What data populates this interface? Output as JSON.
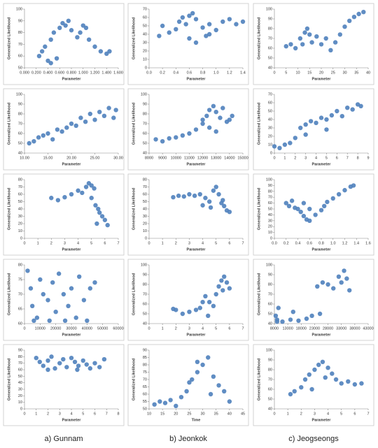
{
  "captions": [
    "a) Gunnam",
    "b) Jeonkok",
    "c) Jeogseongs"
  ],
  "chart_data": [
    {
      "type": "scatter",
      "color": "#4f81bd",
      "y_label": "Generalized Likelihood",
      "x_label": "Parameter",
      "xlim": [
        0,
        1.6
      ],
      "xticks": [
        {
          "value": 0,
          "label": "0.000"
        },
        {
          "value": 0.2,
          "label": "0.200"
        },
        {
          "value": 0.4,
          "label": "0.400"
        },
        {
          "value": 0.6,
          "label": "0.600"
        },
        {
          "value": 0.8,
          "label": "0.800"
        },
        {
          "value": 1,
          "label": "1.000"
        },
        {
          "value": 1.2,
          "label": "1.200"
        },
        {
          "value": 1.4,
          "label": "1.400"
        },
        {
          "value": 1.6,
          "label": "1.600"
        }
      ],
      "ylim": [
        50,
        100
      ],
      "yticks": [
        50,
        60,
        70,
        80,
        90,
        100
      ],
      "x": [
        0.25,
        0.3,
        0.35,
        0.45,
        0.5,
        0.6,
        0.65,
        0.7,
        0.75,
        0.8,
        0.9,
        0.95,
        1.0,
        1.05,
        1.1,
        1.2,
        1.3,
        1.4,
        1.45,
        0.4,
        0.45,
        0.55
      ],
      "y": [
        60,
        64,
        68,
        74,
        80,
        84,
        88,
        86,
        90,
        82,
        76,
        80,
        86,
        84,
        74,
        68,
        64,
        62,
        64,
        56,
        54,
        58
      ]
    },
    {
      "type": "scatter",
      "color": "#4f81bd",
      "y_label": "Generalized Likelihood",
      "x_label": "Parameter",
      "xlim": [
        0,
        1.4
      ],
      "xticks": [
        {
          "value": 0,
          "label": "0.0"
        },
        0.2,
        0.4,
        0.6,
        0.8,
        {
          "value": 1,
          "label": "1.0"
        },
        1.2,
        1.4
      ],
      "ylim": [
        0,
        70
      ],
      "yticks": [
        0,
        10,
        20,
        30,
        40,
        50,
        60,
        70
      ],
      "x": [
        0.15,
        0.2,
        0.3,
        0.4,
        0.45,
        0.5,
        0.55,
        0.6,
        0.65,
        0.7,
        0.8,
        0.85,
        0.9,
        1.0,
        1.1,
        1.2,
        1.3,
        1.4,
        0.6,
        0.7,
        0.9
      ],
      "y": [
        38,
        50,
        42,
        46,
        55,
        60,
        52,
        62,
        65,
        58,
        48,
        38,
        52,
        45,
        55,
        58,
        52,
        55,
        35,
        30,
        40
      ]
    },
    {
      "type": "scatter",
      "color": "#4f81bd",
      "y_label": "Generalized Likelihood",
      "x_label": "Parameter",
      "xlim": [
        0,
        40
      ],
      "xticks": [
        0,
        5,
        10,
        15,
        20,
        25,
        30,
        35,
        40
      ],
      "ylim": [
        40,
        100
      ],
      "yticks": [
        40,
        50,
        60,
        70,
        80,
        90,
        100
      ],
      "x": [
        5,
        7,
        9,
        11,
        13,
        15,
        16,
        18,
        20,
        22,
        24,
        26,
        28,
        30,
        32,
        34,
        36,
        38,
        12,
        14
      ],
      "y": [
        62,
        64,
        60,
        70,
        76,
        74,
        66,
        72,
        64,
        70,
        58,
        66,
        74,
        82,
        88,
        92,
        95,
        97,
        64,
        80
      ]
    },
    {
      "type": "scatter",
      "color": "#4f81bd",
      "y_label": "Generalized Likelihood",
      "x_label": "Parameter",
      "xlim": [
        10,
        30
      ],
      "xticks": [
        {
          "value": 10,
          "label": "10.00"
        },
        {
          "value": 15,
          "label": "15.00"
        },
        {
          "value": 20,
          "label": "20.00"
        },
        {
          "value": 25,
          "label": "25.00"
        },
        {
          "value": 30,
          "label": "30.00"
        }
      ],
      "ylim": [
        40,
        100
      ],
      "yticks": [
        40,
        50,
        60,
        70,
        80,
        90,
        100
      ],
      "x": [
        11,
        12,
        13,
        14,
        15,
        16,
        17,
        18,
        19,
        20,
        21,
        22,
        23,
        24,
        25,
        26,
        27,
        28,
        29,
        29.5
      ],
      "y": [
        50,
        52,
        56,
        58,
        60,
        54,
        64,
        62,
        66,
        70,
        68,
        76,
        72,
        80,
        74,
        82,
        78,
        86,
        76,
        84
      ]
    },
    {
      "type": "scatter",
      "color": "#4f81bd",
      "y_label": "Generalized Likelihood",
      "x_label": "Parameter",
      "xlim": [
        8000,
        15000
      ],
      "xticks": [
        8000,
        9000,
        10000,
        11000,
        12000,
        13000,
        14000,
        15000
      ],
      "ylim": [
        40,
        100
      ],
      "yticks": [
        40,
        50,
        60,
        70,
        80,
        90,
        100
      ],
      "x": [
        8500,
        9000,
        9500,
        10000,
        10500,
        11000,
        11500,
        12000,
        12300,
        12500,
        12800,
        13000,
        13300,
        13500,
        13800,
        14000,
        14200,
        12000,
        12500,
        13000
      ],
      "y": [
        54,
        52,
        55,
        56,
        58,
        60,
        64,
        70,
        78,
        84,
        88,
        82,
        76,
        86,
        72,
        74,
        78,
        74,
        66,
        62
      ]
    },
    {
      "type": "scatter",
      "color": "#4f81bd",
      "y_label": "Generalized Likelihood",
      "x_label": "Parameter",
      "xlim": [
        0,
        9
      ],
      "xticks": [
        0,
        1,
        2,
        3,
        4,
        5,
        6,
        7,
        8,
        9
      ],
      "ylim": [
        0,
        70
      ],
      "yticks": [
        0,
        10,
        20,
        30,
        40,
        50,
        60,
        70
      ],
      "x": [
        0,
        0.5,
        1,
        1.5,
        2,
        2.5,
        3,
        3.5,
        4,
        4.5,
        5,
        5.5,
        6,
        6.5,
        7,
        7.5,
        8,
        8.3,
        3,
        5
      ],
      "y": [
        8,
        6,
        10,
        12,
        18,
        30,
        34,
        38,
        36,
        42,
        40,
        45,
        50,
        44,
        54,
        52,
        58,
        56,
        22,
        28
      ]
    },
    {
      "type": "scatter",
      "color": "#4f81bd",
      "y_label": "Generalized Likelihood",
      "x_label": "Parameter",
      "xlim": [
        0,
        7
      ],
      "xticks": [
        0,
        1,
        2,
        3,
        4,
        5,
        6,
        7
      ],
      "ylim": [
        0,
        80
      ],
      "yticks": [
        0,
        10,
        20,
        30,
        40,
        50,
        60,
        70,
        80
      ],
      "x": [
        2,
        2.5,
        3,
        3.5,
        4,
        4.3,
        4.6,
        4.8,
        5,
        5.2,
        5,
        5.3,
        5.5,
        5.8,
        6,
        6.2,
        5.4,
        5.6
      ],
      "y": [
        55,
        52,
        56,
        60,
        65,
        62,
        70,
        75,
        72,
        68,
        55,
        45,
        40,
        30,
        25,
        18,
        20,
        35
      ]
    },
    {
      "type": "scatter",
      "color": "#4f81bd",
      "y_label": "Generalized Likelihood",
      "x_label": "Parameter",
      "xlim": [
        0,
        7
      ],
      "xticks": [
        0,
        1,
        2,
        3,
        4,
        5,
        6,
        7
      ],
      "ylim": [
        0,
        80
      ],
      "yticks": [
        0,
        10,
        20,
        30,
        40,
        50,
        60,
        70,
        80
      ],
      "x": [
        1.8,
        2.2,
        2.6,
        3,
        3.4,
        3.8,
        4.2,
        4.5,
        4.8,
        5,
        5.2,
        5.4,
        5.6,
        5.8,
        6,
        4,
        4.6,
        5.5
      ],
      "y": [
        56,
        58,
        57,
        60,
        58,
        60,
        55,
        50,
        65,
        70,
        60,
        48,
        44,
        38,
        36,
        45,
        42,
        52
      ]
    },
    {
      "type": "scatter",
      "color": "#4f81bd",
      "y_label": "Generalized Likelihood",
      "x_label": "Parameter",
      "xlim": [
        0,
        1.6
      ],
      "xticks": [
        {
          "value": 0,
          "label": "0.0"
        },
        0.2,
        0.4,
        0.6,
        0.8,
        {
          "value": 1,
          "label": "1.0"
        },
        1.2,
        1.4,
        1.6
      ],
      "ylim": [
        0,
        100
      ],
      "yticks": [
        0,
        10,
        20,
        30,
        40,
        50,
        60,
        70,
        80,
        90,
        100
      ],
      "x": [
        0.2,
        0.25,
        0.3,
        0.35,
        0.4,
        0.45,
        0.5,
        0.55,
        0.6,
        0.7,
        0.8,
        0.85,
        0.9,
        1.0,
        1.1,
        1.2,
        1.3,
        1.35,
        0.5,
        0.6
      ],
      "y": [
        60,
        55,
        64,
        52,
        50,
        45,
        38,
        32,
        30,
        40,
        48,
        55,
        62,
        68,
        75,
        82,
        88,
        90,
        60,
        50
      ]
    },
    {
      "type": "scatter",
      "color": "#4f81bd",
      "y_label": "Generalized Likelihood",
      "x_label": "Parameter",
      "xlim": [
        0,
        60000
      ],
      "xticks": [
        0,
        10000,
        20000,
        30000,
        40000,
        50000,
        60000
      ],
      "ylim": [
        60,
        80
      ],
      "yticks": [
        60,
        65,
        70,
        75,
        80
      ],
      "x": [
        2000,
        4000,
        5000,
        8000,
        10000,
        12000,
        15000,
        18000,
        20000,
        22000,
        25000,
        28000,
        30000,
        33000,
        35000,
        38000,
        40000,
        42000,
        45000,
        6000,
        16000,
        26000
      ],
      "y": [
        78,
        72,
        66,
        62,
        75,
        70,
        68,
        74,
        64,
        77,
        70,
        66,
        72,
        62,
        76,
        68,
        61,
        72,
        74,
        61,
        61,
        61
      ]
    },
    {
      "type": "scatter",
      "color": "#4f81bd",
      "y_label": "Generalized Likelihood",
      "x_label": "Parameter",
      "xlim": [
        0,
        7
      ],
      "xticks": [
        0,
        1,
        2,
        3,
        4,
        5,
        6,
        7
      ],
      "ylim": [
        40,
        100
      ],
      "yticks": [
        40,
        50,
        60,
        70,
        80,
        90,
        100
      ],
      "x": [
        1.8,
        2,
        2.5,
        3,
        3.5,
        3.8,
        4,
        4.2,
        4.5,
        4.8,
        5,
        5.2,
        5.4,
        5.6,
        5.8,
        6,
        4.4,
        5.5
      ],
      "y": [
        55,
        54,
        50,
        52,
        54,
        56,
        62,
        68,
        62,
        58,
        70,
        78,
        84,
        88,
        82,
        76,
        48,
        74
      ]
    },
    {
      "type": "scatter",
      "color": "#4f81bd",
      "y_label": "Generalized Likelihood",
      "x_label": "Parameter",
      "xlim": [
        8000,
        43000
      ],
      "xticks": [
        8000,
        13000,
        18000,
        23000,
        28000,
        33000,
        38000,
        43000
      ],
      "ylim": [
        40,
        100
      ],
      "yticks": [
        40,
        50,
        60,
        70,
        80,
        90,
        100
      ],
      "x": [
        8500,
        9000,
        9500,
        11000,
        14000,
        17000,
        20000,
        22000,
        24000,
        26000,
        28000,
        30000,
        32000,
        34000,
        35000,
        36000,
        9000,
        15000,
        25000,
        33000
      ],
      "y": [
        48,
        44,
        56,
        42,
        44,
        43,
        45,
        48,
        78,
        82,
        80,
        76,
        88,
        94,
        86,
        74,
        42,
        52,
        50,
        82
      ]
    },
    {
      "type": "scatter",
      "color": "#4f81bd",
      "y_label": "Generalized Likelihood",
      "x_label": "Parameter",
      "xlim": [
        0,
        8
      ],
      "xticks": [
        0,
        1,
        2,
        3,
        4,
        5,
        6,
        7,
        8
      ],
      "ylim": [
        0,
        90
      ],
      "yticks": [
        0,
        10,
        20,
        30,
        40,
        50,
        60,
        70,
        80,
        90
      ],
      "x": [
        1,
        1.3,
        1.6,
        2,
        2.3,
        2.6,
        3,
        3.3,
        3.6,
        4,
        4.3,
        4.6,
        5,
        5.3,
        5.6,
        6,
        6.4,
        6.8,
        2,
        4.5
      ],
      "y": [
        78,
        72,
        66,
        74,
        80,
        62,
        70,
        76,
        64,
        78,
        72,
        66,
        74,
        68,
        62,
        70,
        64,
        76,
        60,
        60
      ]
    },
    {
      "type": "scatter",
      "color": "#4f81bd",
      "y_label": "Generalized Likelihood",
      "x_label": "Time",
      "xlim": [
        10,
        45
      ],
      "xticks": [
        10,
        15,
        20,
        25,
        30,
        35,
        40,
        45
      ],
      "ylim": [
        50,
        90
      ],
      "yticks": [
        50,
        55,
        60,
        65,
        70,
        75,
        80,
        85,
        90
      ],
      "x": [
        12,
        14,
        16,
        18,
        20,
        22,
        24,
        26,
        28,
        30,
        32,
        34,
        36,
        38,
        40,
        25,
        28,
        33
      ],
      "y": [
        53,
        55,
        54,
        56,
        52,
        58,
        62,
        70,
        75,
        80,
        85,
        72,
        66,
        62,
        55,
        68,
        82,
        60
      ]
    },
    {
      "type": "scatter",
      "color": "#4f81bd",
      "y_label": "Generalized Likelihood",
      "x_label": "Parameter",
      "xlim": [
        0,
        7
      ],
      "xticks": [
        0,
        1,
        2,
        3,
        4,
        5,
        6,
        7
      ],
      "ylim": [
        40,
        100
      ],
      "yticks": [
        40,
        50,
        60,
        70,
        80,
        90,
        100
      ],
      "x": [
        1.2,
        1.5,
        2,
        2.3,
        2.6,
        3,
        3.3,
        3.6,
        4,
        4.3,
        4.6,
        5,
        5.5,
        6,
        6.5,
        2.8,
        3.8
      ],
      "y": [
        55,
        58,
        62,
        70,
        75,
        80,
        85,
        88,
        82,
        76,
        70,
        66,
        68,
        65,
        66,
        60,
        72
      ]
    }
  ]
}
